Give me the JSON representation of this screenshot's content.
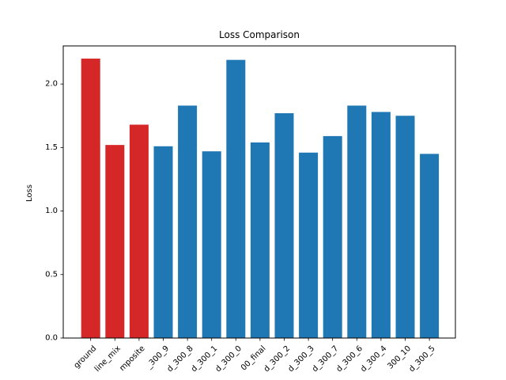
{
  "chart_data": {
    "type": "bar",
    "title": "Loss Comparison",
    "xlabel": "",
    "ylabel": "Loss",
    "ylim": [
      0,
      2.3
    ],
    "yticks": [
      0.0,
      0.5,
      1.0,
      1.5,
      2.0
    ],
    "ytick_labels": [
      "0.0",
      "0.5",
      "1.0",
      "1.5",
      "2.0"
    ],
    "grid": false,
    "categories": [
      "ground",
      "line_mix",
      "mposite",
      "_300_9",
      "d_300_8",
      "d_300_1",
      "d_300_0",
      "00_final",
      "d_300_2",
      "d_300_3",
      "d_300_7",
      "d_300_6",
      "d_300_4",
      "300_10",
      "d_300_5"
    ],
    "values": [
      2.2,
      1.52,
      1.68,
      1.51,
      1.83,
      1.47,
      2.19,
      1.54,
      1.77,
      1.46,
      1.59,
      1.83,
      1.78,
      1.75,
      1.45
    ],
    "colors": [
      "#d62728",
      "#d62728",
      "#d62728",
      "#1f77b4",
      "#1f77b4",
      "#1f77b4",
      "#1f77b4",
      "#1f77b4",
      "#1f77b4",
      "#1f77b4",
      "#1f77b4",
      "#1f77b4",
      "#1f77b4",
      "#1f77b4",
      "#1f77b4"
    ]
  }
}
